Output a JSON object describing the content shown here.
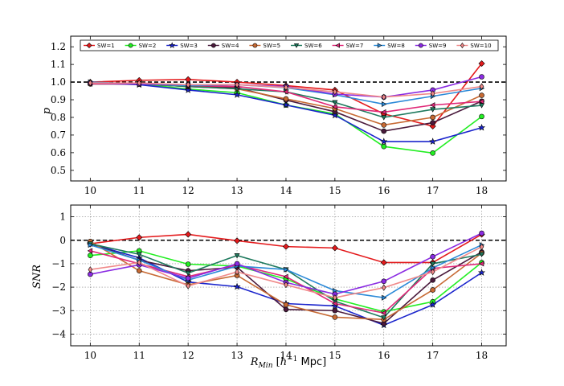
{
  "chart_data": [
    {
      "type": "line",
      "ylabel": "p",
      "xlim": [
        9.6,
        18.5
      ],
      "ylim": [
        0.44,
        1.26
      ],
      "xticks": [
        "10",
        "11",
        "12",
        "13",
        "14",
        "15",
        "16",
        "17",
        "18"
      ],
      "yticks": [
        "0.5",
        "0.6",
        "0.7",
        "0.8",
        "0.9",
        "1.0",
        "1.1",
        "1.2"
      ],
      "reference_line": 1.0,
      "x": [
        10,
        11,
        12,
        13,
        14,
        15,
        16,
        17,
        18
      ],
      "series": [
        {
          "name": "SW=1",
          "color": "#e41a1c",
          "marker": "diamond",
          "values": [
            1.0,
            1.01,
            1.015,
            1.0,
            0.98,
            0.955,
            0.82,
            0.75,
            1.105
          ]
        },
        {
          "name": "SW=2",
          "color": "#22ee22",
          "marker": "circle",
          "values": [
            0.99,
            0.99,
            0.96,
            0.94,
            0.87,
            0.82,
            0.635,
            0.598,
            0.805
          ]
        },
        {
          "name": "SW=3",
          "color": "#1a24cc",
          "marker": "star",
          "values": [
            0.995,
            0.985,
            0.955,
            0.928,
            0.87,
            0.812,
            0.663,
            0.663,
            0.742
          ]
        },
        {
          "name": "SW=4",
          "color": "#4a1a3c",
          "marker": "hexagon",
          "values": [
            0.995,
            0.99,
            0.975,
            0.968,
            0.898,
            0.832,
            0.722,
            0.77,
            0.892
          ]
        },
        {
          "name": "SW=5",
          "color": "#c76a34",
          "marker": "circle",
          "values": [
            0.99,
            0.99,
            0.975,
            0.962,
            0.905,
            0.85,
            0.757,
            0.8,
            0.925
          ]
        },
        {
          "name": "SW=6",
          "color": "#1f7a5e",
          "marker": "triangle-down",
          "values": [
            0.99,
            0.99,
            0.975,
            0.962,
            0.945,
            0.885,
            0.8,
            0.845,
            0.868
          ]
        },
        {
          "name": "SW=7",
          "color": "#e02878",
          "marker": "triangle-left",
          "values": [
            0.99,
            0.99,
            0.98,
            0.975,
            0.945,
            0.86,
            0.83,
            0.87,
            0.89
          ]
        },
        {
          "name": "SW=8",
          "color": "#2c8ad8",
          "marker": "triangle-right",
          "values": [
            1.0,
            0.99,
            0.98,
            0.985,
            0.968,
            0.928,
            0.875,
            0.92,
            0.965
          ]
        },
        {
          "name": "SW=9",
          "color": "#8a2be2",
          "marker": "circle",
          "values": [
            0.995,
            0.99,
            0.985,
            0.985,
            0.975,
            0.932,
            0.915,
            0.955,
            1.03
          ]
        },
        {
          "name": "SW=10",
          "color": "#f08a8a",
          "marker": "thin-diamond",
          "values": [
            0.995,
            0.995,
            0.985,
            0.985,
            0.97,
            0.945,
            0.915,
            0.935,
            0.975
          ]
        }
      ]
    },
    {
      "type": "line",
      "ylabel": "SNR",
      "xlabel": "R_Min [h^-1 Mpc]",
      "xlim": [
        9.6,
        18.5
      ],
      "ylim": [
        -4.5,
        1.5
      ],
      "xticks": [
        "10",
        "11",
        "12",
        "13",
        "14",
        "15",
        "16",
        "17",
        "18"
      ],
      "yticks": [
        "−4",
        "−3",
        "−2",
        "−1",
        "0",
        "1"
      ],
      "reference_line": 0,
      "grid": true,
      "x": [
        10,
        11,
        12,
        13,
        14,
        15,
        16,
        17,
        18
      ],
      "series": [
        {
          "name": "SW=1",
          "color": "#e41a1c",
          "marker": "diamond",
          "values": [
            -0.15,
            0.12,
            0.25,
            -0.02,
            -0.27,
            -0.33,
            -0.95,
            -0.95,
            0.25
          ]
        },
        {
          "name": "SW=2",
          "color": "#22ee22",
          "marker": "circle",
          "values": [
            -0.65,
            -0.45,
            -1.02,
            -1.1,
            -1.65,
            -2.5,
            -3.05,
            -2.62,
            -0.95
          ]
        },
        {
          "name": "SW=3",
          "color": "#1a24cc",
          "marker": "star",
          "values": [
            -0.15,
            -0.75,
            -1.78,
            -1.98,
            -2.7,
            -2.8,
            -3.62,
            -2.75,
            -1.38
          ]
        },
        {
          "name": "SW=4",
          "color": "#4a1a3c",
          "marker": "hexagon",
          "values": [
            -0.15,
            -0.85,
            -1.3,
            -1.15,
            -2.95,
            -3.0,
            -3.55,
            -1.7,
            -0.5
          ]
        },
        {
          "name": "SW=5",
          "color": "#c76a34",
          "marker": "circle",
          "values": [
            -0.05,
            -1.3,
            -1.9,
            -1.5,
            -2.75,
            -3.28,
            -3.38,
            -2.12,
            -0.55
          ]
        },
        {
          "name": "SW=6",
          "color": "#1f7a5e",
          "marker": "triangle-down",
          "values": [
            -0.15,
            -0.6,
            -1.4,
            -0.65,
            -1.25,
            -2.6,
            -3.3,
            -1.0,
            -0.6
          ]
        },
        {
          "name": "SW=7",
          "color": "#e02878",
          "marker": "triangle-left",
          "values": [
            -0.45,
            -1.0,
            -1.55,
            -1.05,
            -1.55,
            -2.7,
            -3.1,
            -1.2,
            -1.0
          ]
        },
        {
          "name": "SW=8",
          "color": "#2c8ad8",
          "marker": "triangle-right",
          "values": [
            -0.2,
            -0.85,
            -1.7,
            -1.1,
            -1.25,
            -2.15,
            -2.45,
            -1.18,
            -0.2
          ]
        },
        {
          "name": "SW=9",
          "color": "#8a2be2",
          "marker": "circle",
          "values": [
            -1.45,
            -1.05,
            -1.62,
            -1.0,
            -1.8,
            -2.3,
            -1.75,
            -0.7,
            0.3
          ]
        },
        {
          "name": "SW=10",
          "color": "#f08a8a",
          "marker": "thin-diamond",
          "values": [
            -1.25,
            -0.95,
            -1.95,
            -1.35,
            -1.9,
            -2.45,
            -2.02,
            -1.35,
            -0.28
          ]
        }
      ]
    }
  ]
}
